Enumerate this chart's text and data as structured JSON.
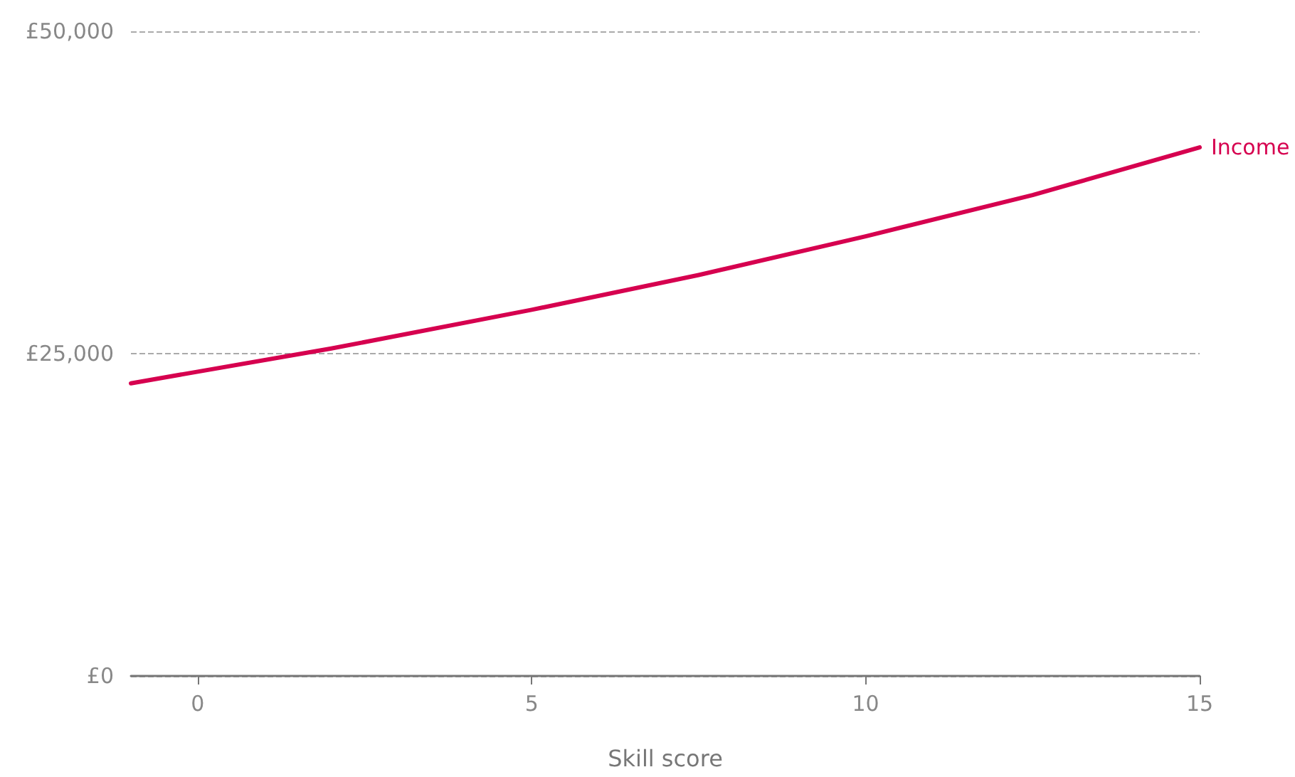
{
  "chart_data": {
    "type": "line",
    "xlabel": "Skill score",
    "x": [
      -1,
      0,
      2,
      5,
      7.5,
      10,
      12.5,
      15
    ],
    "series": [
      {
        "name": "Income",
        "color": "#d6004f",
        "values": [
          22700,
          23600,
          25400,
          28400,
          31100,
          34100,
          37300,
          41000
        ]
      }
    ],
    "xlim": [
      -1,
      15
    ],
    "xticks": [
      0,
      5,
      10,
      15
    ],
    "ylim": [
      0,
      50000
    ],
    "yticks": [
      {
        "value": 0,
        "label": "£0"
      },
      {
        "value": 25000,
        "label": "£25,000"
      },
      {
        "value": 50000,
        "label": "£50,000"
      }
    ],
    "grid": "y",
    "marker": "none",
    "line_style": "solid",
    "legend": false
  }
}
